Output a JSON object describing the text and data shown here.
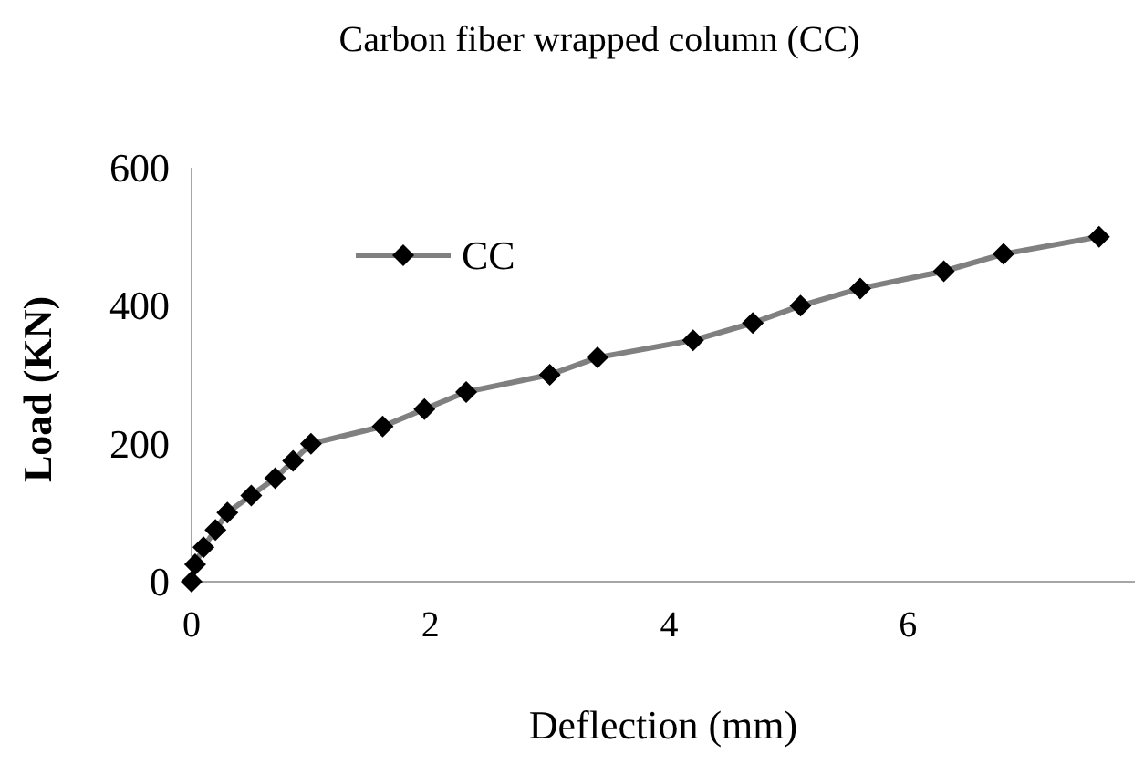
{
  "chart_data": {
    "type": "line",
    "title": "Carbon fiber wrapped column (CC)",
    "xlabel": "Deflection (mm)",
    "ylabel": "Load (KN)",
    "x": [
      0,
      0.03,
      0.1,
      0.2,
      0.3,
      0.5,
      0.7,
      0.85,
      1.0,
      1.6,
      1.95,
      2.3,
      3.0,
      3.4,
      4.2,
      4.7,
      5.1,
      5.6,
      6.3,
      6.8,
      7.6
    ],
    "series": [
      {
        "name": "CC",
        "color": "#808080",
        "values": [
          0,
          25,
          50,
          75,
          100,
          125,
          150,
          175,
          200,
          225,
          250,
          275,
          300,
          325,
          350,
          375,
          400,
          425,
          450,
          475,
          500
        ]
      }
    ],
    "xlim": [
      0,
      7.9
    ],
    "xticks": [
      0,
      2,
      4,
      6
    ],
    "ylim": [
      0,
      600
    ],
    "yticks": [
      0,
      200,
      400,
      600
    ],
    "marker": "diamond",
    "legend": "top left",
    "grid": false
  }
}
